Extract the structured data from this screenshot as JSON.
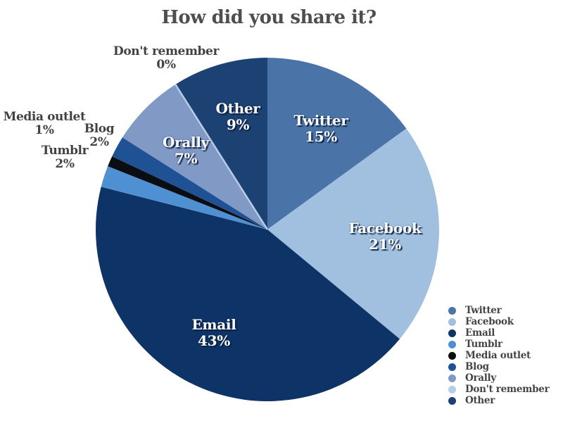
{
  "title": "How did you share it?",
  "chart_data": {
    "type": "pie",
    "title": "How did you share it?",
    "units": "%",
    "total": 100,
    "start_angle_deg": 0,
    "direction": "clockwise",
    "legend_position": "bottom-right",
    "background_color": "#ffffff",
    "title_color": "#4e4e4e",
    "outside_label_color": "#424242",
    "inside_label_color": "#ffffff",
    "slices": [
      {
        "label": "Twitter",
        "value": 15,
        "color": "#4a73a8"
      },
      {
        "label": "Facebook",
        "value": 21,
        "color": "#a1c0df"
      },
      {
        "label": "Email",
        "value": 43,
        "color": "#0e3366"
      },
      {
        "label": "Tumblr",
        "value": 2,
        "color": "#4f90d2"
      },
      {
        "label": "Media outlet",
        "value": 1,
        "color": "#0a0d12"
      },
      {
        "label": "Blog",
        "value": 2,
        "color": "#1e5295"
      },
      {
        "label": "Orally",
        "value": 7,
        "color": "#8099c5"
      },
      {
        "label": "Don't remember",
        "value": 0,
        "color": "#b7cce7"
      },
      {
        "label": "Other",
        "value": 9,
        "color": "#1c4173"
      }
    ]
  }
}
